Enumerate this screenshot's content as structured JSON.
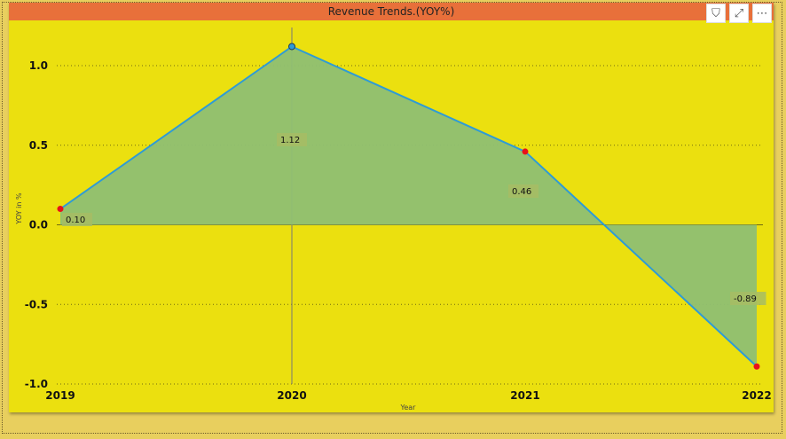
{
  "visual": {
    "title": "Revenue Trends.(YOY%)",
    "icons": [
      {
        "name": "filter-icon",
        "glyph": "⛉"
      },
      {
        "name": "focus-mode-icon",
        "glyph": "⤢"
      },
      {
        "name": "more-options-icon",
        "glyph": "⋯"
      }
    ]
  },
  "chart_data": {
    "type": "area",
    "title": "Revenue Trends.(YOY%)",
    "xlabel": "Year",
    "ylabel": "YOY in %",
    "categories": [
      "2019",
      "2020",
      "2021",
      "2022"
    ],
    "series": [
      {
        "values": [
          0.1,
          1.12,
          0.46,
          -0.89
        ]
      }
    ],
    "data_labels": [
      "0.10",
      "1.12",
      "0.46",
      "-0.89"
    ],
    "y_ticks": [
      "1.0",
      "0.5",
      "0.0",
      "-0.5",
      "-1.0"
    ],
    "ylim": [
      -1.0,
      1.2
    ],
    "grid": true,
    "colors": {
      "line": "#2e9bd6",
      "area": "#8fbf73",
      "marker": "#e8101a",
      "marker_highlight": "#2e9bd6",
      "label_bg": "#a7bc64"
    }
  }
}
